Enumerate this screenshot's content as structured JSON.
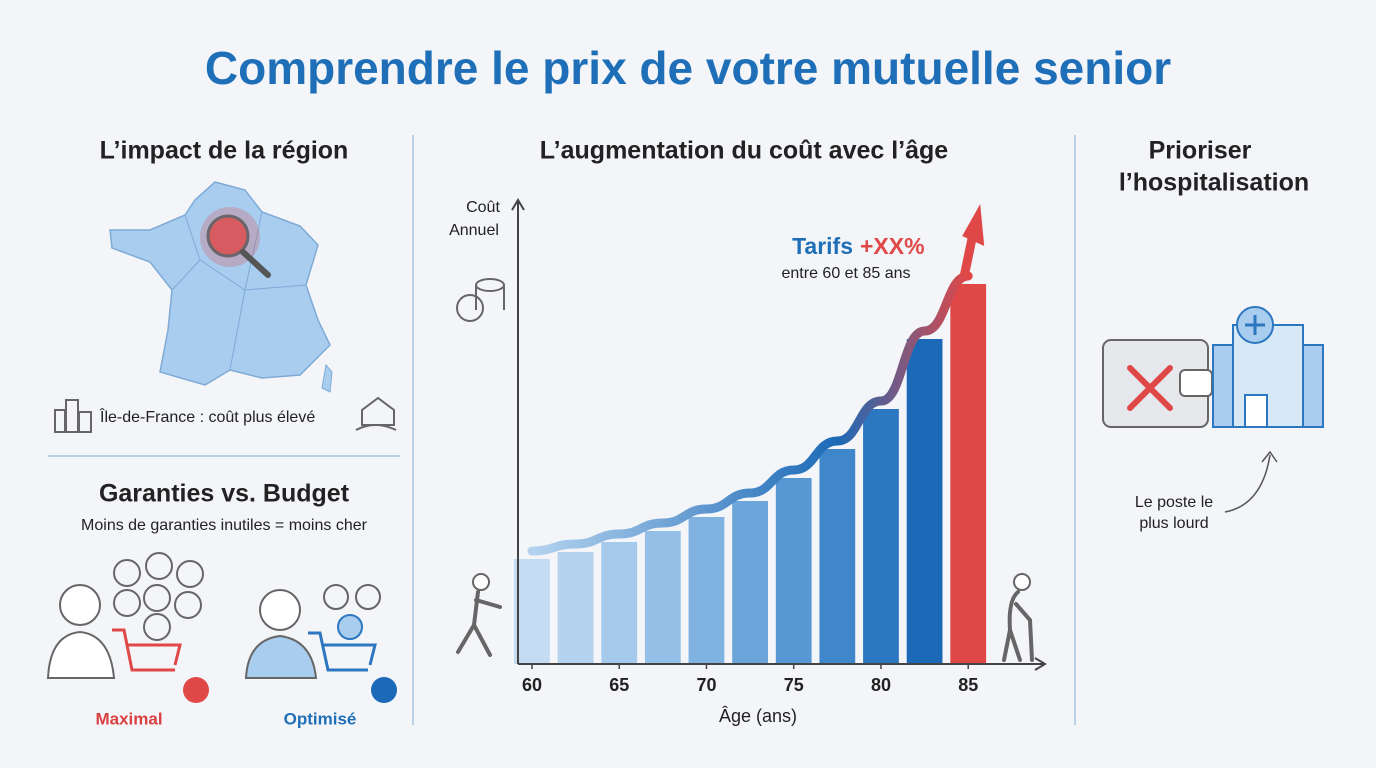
{
  "title": "Comprendre le prix de votre mutuelle senior",
  "region": {
    "title": "L’impact de la région",
    "caption": "Île-de-France : coût plus élevé"
  },
  "guarantees": {
    "title": "Garanties vs. Budget",
    "subtitle": "Moins de garanties inutiles = moins cher",
    "left_label": "Maximal",
    "right_label": "Optimisé"
  },
  "hospital": {
    "title_lines": [
      "Prioriser",
      "l’hospitalisation"
    ],
    "note_lines": [
      "Le poste le",
      "plus lourd"
    ]
  },
  "chart_data": {
    "type": "bar",
    "title": "L’augmentation du coût avec l’âge",
    "y_label_lines": [
      "Coût",
      "Annuel"
    ],
    "x_label": "Âge (ans)",
    "annotation": {
      "prefix": "Tarifs",
      "highlight": "+XX%",
      "detail": "entre 60 et 85 ans"
    },
    "x": [
      60,
      62.5,
      65,
      67.5,
      70,
      72.5,
      75,
      77.5,
      80,
      82.5,
      85
    ],
    "values": [
      105,
      112,
      122,
      133,
      147,
      163,
      186,
      215,
      255,
      325,
      380
    ],
    "colors": [
      "#c4dcf2",
      "#b5d3ef",
      "#a6caeb",
      "#94bfe6",
      "#80b2e0",
      "#6ca5da",
      "#5797d3",
      "#3f86ca",
      "#2c77c0",
      "#1c6ab7",
      "#e04848"
    ],
    "xlim": [
      59.2,
      89.4
    ],
    "ylim": [
      0,
      464
    ],
    "xticks": [
      60,
      65,
      70,
      75,
      80,
      85
    ]
  }
}
